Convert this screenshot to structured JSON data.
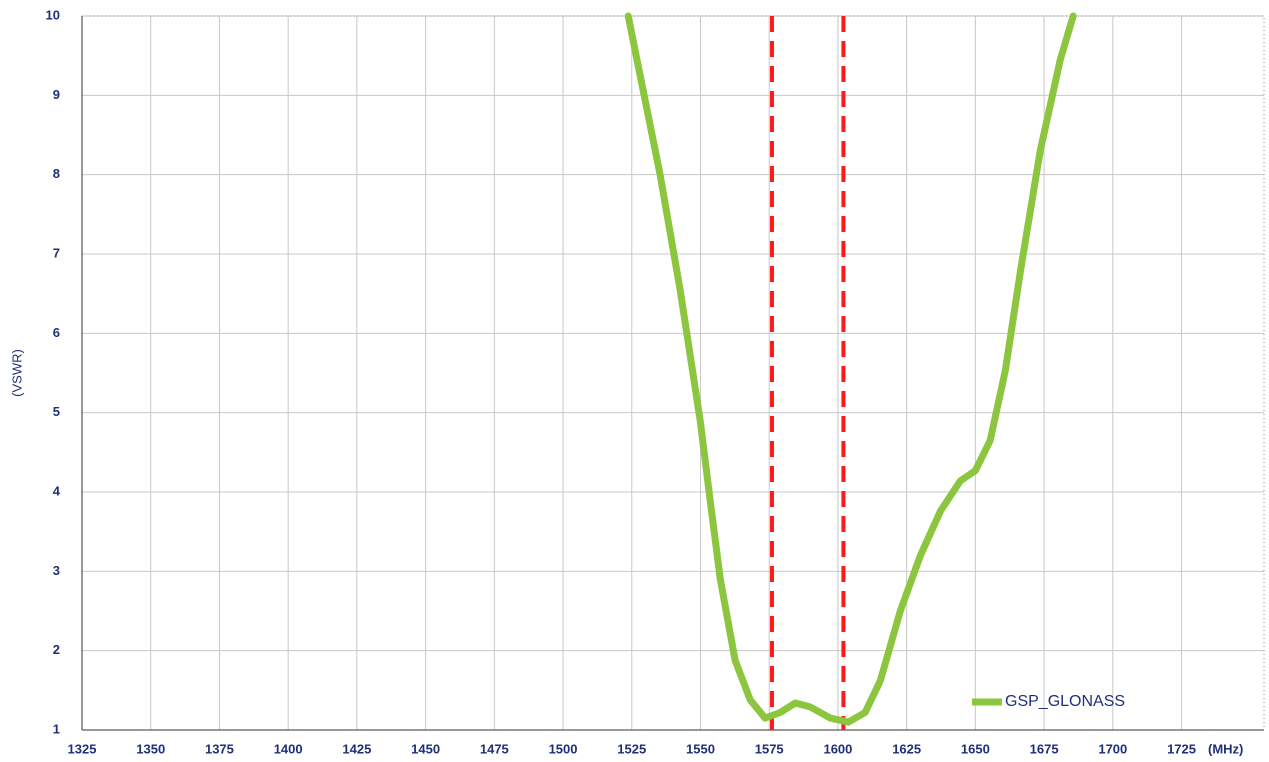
{
  "chart_data": {
    "type": "line",
    "ylabel": "(VSWR)",
    "xlabel": "(MHz)",
    "xlim": [
      1325,
      1755
    ],
    "xticks": [
      1325,
      1350,
      1375,
      1400,
      1425,
      1450,
      1475,
      1500,
      1525,
      1550,
      1575,
      1600,
      1625,
      1650,
      1675,
      1700,
      1725
    ],
    "ylim": [
      1,
      10
    ],
    "yticks": [
      1,
      2,
      3,
      4,
      5,
      6,
      7,
      8,
      9,
      10
    ],
    "grid": true,
    "legend": "lower right",
    "vlines": [
      1576,
      1602
    ],
    "vline_color": "#ff1a1a",
    "series": [
      {
        "name": "GSP_GLONASS",
        "color": "#8cc63f",
        "x": [
          1523.7,
          1535.3,
          1542.6,
          1549.9,
          1553.5,
          1557.2,
          1562.6,
          1568.1,
          1573.5,
          1579,
          1584.5,
          1590,
          1597.2,
          1603.8,
          1609.9,
          1615.4,
          1622.7,
          1630,
          1637.3,
          1644.5,
          1650,
          1655.4,
          1660.9,
          1666.4,
          1673.6,
          1680.9,
          1685.6
        ],
        "values": [
          10,
          8,
          6.55,
          4.9,
          3.9,
          2.9,
          1.88,
          1.38,
          1.15,
          1.22,
          1.34,
          1.29,
          1.15,
          1.1,
          1.22,
          1.62,
          2.5,
          3.2,
          3.76,
          4.14,
          4.27,
          4.65,
          5.53,
          6.79,
          8.3,
          9.45,
          10
        ]
      }
    ]
  }
}
